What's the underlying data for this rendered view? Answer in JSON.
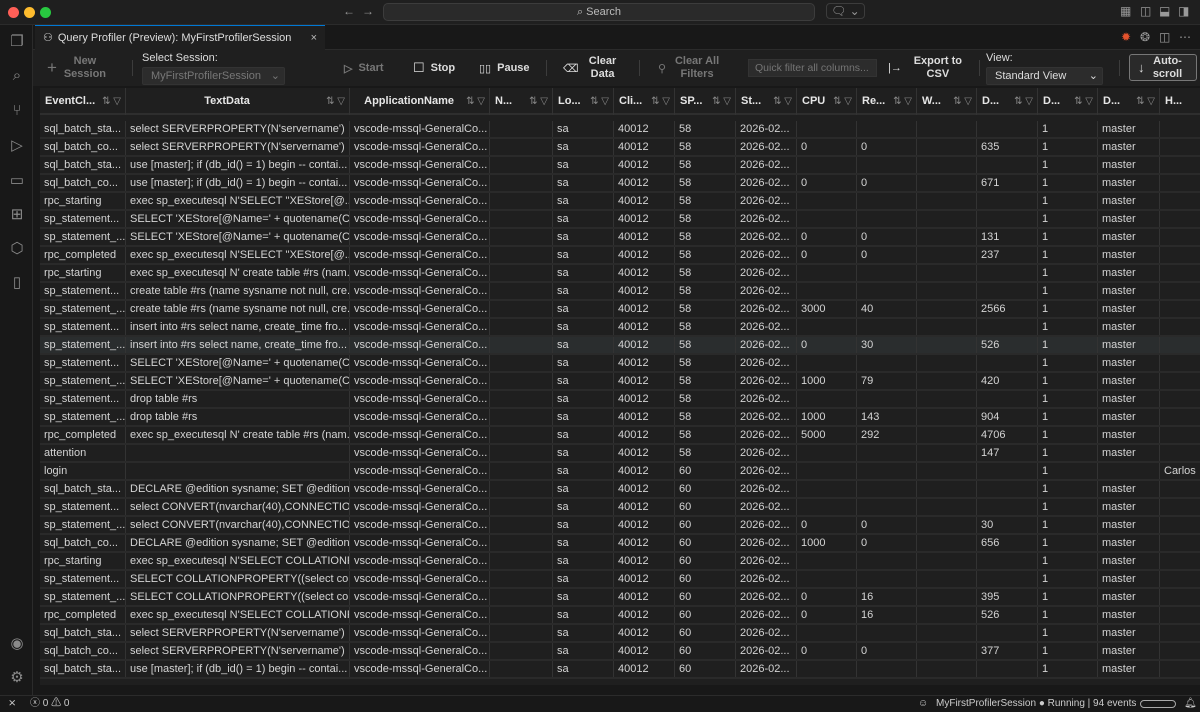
{
  "titlebar": {
    "search": "Search"
  },
  "tab": {
    "title": "Query Profiler (Preview): MyFirstProfilerSession",
    "close": "×"
  },
  "toolbar": {
    "new_session": "New Session",
    "select_session_label": "Select Session:",
    "selected_session": "MyFirstProfilerSession",
    "start": "Start",
    "stop": "Stop",
    "pause": "Pause",
    "clear_data": "Clear Data",
    "clear_filters": "Clear All Filters",
    "filter_placeholder": "Quick filter all columns...",
    "export": "Export to CSV",
    "view_label": "View:",
    "view_value": "Standard View",
    "autoscroll": "Auto-scroll"
  },
  "columns": [
    "EventCl...",
    "TextData",
    "ApplicationName",
    "N...",
    "Lo...",
    "Cli...",
    "SP...",
    "St...",
    "CPU",
    "Re...",
    "W...",
    "D...",
    "D...",
    "D...",
    "H..."
  ],
  "rows": [
    [
      "sql_batch_sta...",
      "select SERVERPROPERTY(N'servername')",
      "vscode-mssql-GeneralCo...",
      "",
      "sa",
      "40012",
      "58",
      "2026-02...",
      "",
      "",
      "",
      "",
      "1",
      "master",
      ""
    ],
    [
      "sql_batch_co...",
      "select SERVERPROPERTY(N'servername')",
      "vscode-mssql-GeneralCo...",
      "",
      "sa",
      "40012",
      "58",
      "2026-02...",
      "0",
      "0",
      "",
      "635",
      "1",
      "master",
      ""
    ],
    [
      "sql_batch_sta...",
      "use [master]; if (db_id() = 1) begin -- contai...",
      "vscode-mssql-GeneralCo...",
      "",
      "sa",
      "40012",
      "58",
      "2026-02...",
      "",
      "",
      "",
      "",
      "1",
      "master",
      ""
    ],
    [
      "sql_batch_co...",
      "use [master]; if (db_id() = 1) begin -- contai...",
      "vscode-mssql-GeneralCo...",
      "",
      "sa",
      "40012",
      "58",
      "2026-02...",
      "0",
      "0",
      "",
      "671",
      "1",
      "master",
      ""
    ],
    [
      "rpc_starting",
      "exec sp_executesql N'SELECT ''XEStore[@...",
      "vscode-mssql-GeneralCo...",
      "",
      "sa",
      "40012",
      "58",
      "2026-02...",
      "",
      "",
      "",
      "",
      "1",
      "master",
      ""
    ],
    [
      "sp_statement...",
      "SELECT 'XEStore[@Name=' + quotename(C...",
      "vscode-mssql-GeneralCo...",
      "",
      "sa",
      "40012",
      "58",
      "2026-02...",
      "",
      "",
      "",
      "",
      "1",
      "master",
      ""
    ],
    [
      "sp_statement_...",
      "SELECT 'XEStore[@Name=' + quotename(C...",
      "vscode-mssql-GeneralCo...",
      "",
      "sa",
      "40012",
      "58",
      "2026-02...",
      "0",
      "0",
      "",
      "131",
      "1",
      "master",
      ""
    ],
    [
      "rpc_completed",
      "exec sp_executesql N'SELECT ''XEStore[@...",
      "vscode-mssql-GeneralCo...",
      "",
      "sa",
      "40012",
      "58",
      "2026-02...",
      "0",
      "0",
      "",
      "237",
      "1",
      "master",
      ""
    ],
    [
      "rpc_starting",
      "exec sp_executesql N' create table #rs (nam...",
      "vscode-mssql-GeneralCo...",
      "",
      "sa",
      "40012",
      "58",
      "2026-02...",
      "",
      "",
      "",
      "",
      "1",
      "master",
      ""
    ],
    [
      "sp_statement...",
      "create table #rs (name sysname not null, cre...",
      "vscode-mssql-GeneralCo...",
      "",
      "sa",
      "40012",
      "58",
      "2026-02...",
      "",
      "",
      "",
      "",
      "1",
      "master",
      ""
    ],
    [
      "sp_statement_...",
      "create table #rs (name sysname not null, cre...",
      "vscode-mssql-GeneralCo...",
      "",
      "sa",
      "40012",
      "58",
      "2026-02...",
      "3000",
      "40",
      "",
      "2566",
      "1",
      "master",
      ""
    ],
    [
      "sp_statement...",
      "insert into #rs select name, create_time fro...",
      "vscode-mssql-GeneralCo...",
      "",
      "sa",
      "40012",
      "58",
      "2026-02...",
      "",
      "",
      "",
      "",
      "1",
      "master",
      ""
    ],
    [
      "sp_statement_...",
      "insert into #rs select name, create_time fro...",
      "vscode-mssql-GeneralCo...",
      "",
      "sa",
      "40012",
      "58",
      "2026-02...",
      "0",
      "30",
      "",
      "526",
      "1",
      "master",
      ""
    ],
    [
      "sp_statement...",
      "SELECT 'XEStore[@Name=' + quotename(C...",
      "vscode-mssql-GeneralCo...",
      "",
      "sa",
      "40012",
      "58",
      "2026-02...",
      "",
      "",
      "",
      "",
      "1",
      "master",
      ""
    ],
    [
      "sp_statement_...",
      "SELECT 'XEStore[@Name=' + quotename(C...",
      "vscode-mssql-GeneralCo...",
      "",
      "sa",
      "40012",
      "58",
      "2026-02...",
      "1000",
      "79",
      "",
      "420",
      "1",
      "master",
      ""
    ],
    [
      "sp_statement...",
      "drop table #rs",
      "vscode-mssql-GeneralCo...",
      "",
      "sa",
      "40012",
      "58",
      "2026-02...",
      "",
      "",
      "",
      "",
      "1",
      "master",
      ""
    ],
    [
      "sp_statement_...",
      "drop table #rs",
      "vscode-mssql-GeneralCo...",
      "",
      "sa",
      "40012",
      "58",
      "2026-02...",
      "1000",
      "143",
      "",
      "904",
      "1",
      "master",
      ""
    ],
    [
      "rpc_completed",
      "exec sp_executesql N' create table #rs (nam...",
      "vscode-mssql-GeneralCo...",
      "",
      "sa",
      "40012",
      "58",
      "2026-02...",
      "5000",
      "292",
      "",
      "4706",
      "1",
      "master",
      ""
    ],
    [
      "attention",
      "",
      "vscode-mssql-GeneralCo...",
      "",
      "sa",
      "40012",
      "58",
      "2026-02...",
      "",
      "",
      "",
      "147",
      "1",
      "master",
      ""
    ],
    [
      "login",
      "",
      "vscode-mssql-GeneralCo...",
      "",
      "sa",
      "40012",
      "60",
      "2026-02...",
      "",
      "",
      "",
      "",
      "1",
      "",
      "Carlos"
    ],
    [
      "sql_batch_sta...",
      "DECLARE @edition sysname; SET @edition ...",
      "vscode-mssql-GeneralCo...",
      "",
      "sa",
      "40012",
      "60",
      "2026-02...",
      "",
      "",
      "",
      "",
      "1",
      "master",
      ""
    ],
    [
      "sp_statement...",
      "select CONVERT(nvarchar(40),CONNECTIO...",
      "vscode-mssql-GeneralCo...",
      "",
      "sa",
      "40012",
      "60",
      "2026-02...",
      "",
      "",
      "",
      "",
      "1",
      "master",
      ""
    ],
    [
      "sp_statement_...",
      "select CONVERT(nvarchar(40),CONNECTIO...",
      "vscode-mssql-GeneralCo...",
      "",
      "sa",
      "40012",
      "60",
      "2026-02...",
      "0",
      "0",
      "",
      "30",
      "1",
      "master",
      ""
    ],
    [
      "sql_batch_co...",
      "DECLARE @edition sysname; SET @edition ...",
      "vscode-mssql-GeneralCo...",
      "",
      "sa",
      "40012",
      "60",
      "2026-02...",
      "1000",
      "0",
      "",
      "656",
      "1",
      "master",
      ""
    ],
    [
      "rpc_starting",
      "exec sp_executesql N'SELECT COLLATIONP...",
      "vscode-mssql-GeneralCo...",
      "",
      "sa",
      "40012",
      "60",
      "2026-02...",
      "",
      "",
      "",
      "",
      "1",
      "master",
      ""
    ],
    [
      "sp_statement...",
      "SELECT COLLATIONPROPERTY((select coll...",
      "vscode-mssql-GeneralCo...",
      "",
      "sa",
      "40012",
      "60",
      "2026-02...",
      "",
      "",
      "",
      "",
      "1",
      "master",
      ""
    ],
    [
      "sp_statement_...",
      "SELECT COLLATIONPROPERTY((select coll...",
      "vscode-mssql-GeneralCo...",
      "",
      "sa",
      "40012",
      "60",
      "2026-02...",
      "0",
      "16",
      "",
      "395",
      "1",
      "master",
      ""
    ],
    [
      "rpc_completed",
      "exec sp_executesql N'SELECT COLLATIONP...",
      "vscode-mssql-GeneralCo...",
      "",
      "sa",
      "40012",
      "60",
      "2026-02...",
      "0",
      "16",
      "",
      "526",
      "1",
      "master",
      ""
    ],
    [
      "sql_batch_sta...",
      "select SERVERPROPERTY(N'servername')",
      "vscode-mssql-GeneralCo...",
      "",
      "sa",
      "40012",
      "60",
      "2026-02...",
      "",
      "",
      "",
      "",
      "1",
      "master",
      ""
    ],
    [
      "sql_batch_co...",
      "select SERVERPROPERTY(N'servername')",
      "vscode-mssql-GeneralCo...",
      "",
      "sa",
      "40012",
      "60",
      "2026-02...",
      "0",
      "0",
      "",
      "377",
      "1",
      "master",
      ""
    ],
    [
      "sql_batch_sta...",
      "use [master]; if (db_id() = 1) begin -- contai...",
      "vscode-mssql-GeneralCo...",
      "",
      "sa",
      "40012",
      "60",
      "2026-02...",
      "",
      "",
      "",
      "",
      "1",
      "master",
      ""
    ]
  ],
  "selected_row": 12,
  "status": {
    "errors": "0",
    "warnings": "0",
    "session": "MyFirstProfilerSession",
    "state": "Running | 94 events"
  },
  "colors": {
    "accent": "#0078d4",
    "background": "#1f1f1f"
  }
}
